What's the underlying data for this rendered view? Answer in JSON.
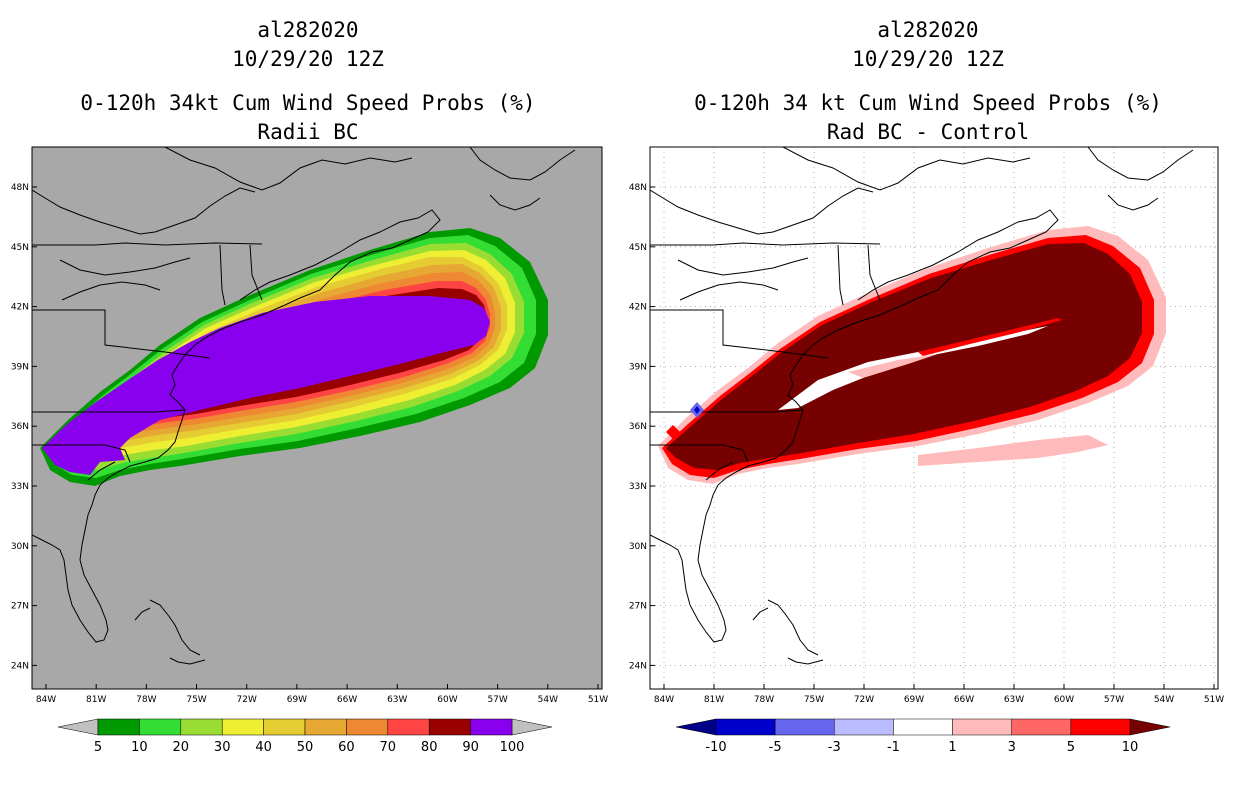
{
  "left_panel": {
    "storm_id": "al282020",
    "datetime": "10/29/20 12Z",
    "title": "0-120h 34kt Cum Wind Speed Probs (%)",
    "subtitle": "Radii BC",
    "background_color": "#a8a8a8",
    "lat_labels": [
      "48N",
      "45N",
      "42N",
      "39N",
      "36N",
      "33N",
      "30N",
      "27N",
      "24N"
    ],
    "lon_labels": [
      "84W",
      "81W",
      "78W",
      "75W",
      "72W",
      "69W",
      "66W",
      "63W",
      "60W",
      "57W",
      "54W",
      "51W"
    ],
    "colorbar": {
      "labels": [
        "5",
        "10",
        "20",
        "30",
        "40",
        "50",
        "60",
        "70",
        "80",
        "90",
        "100"
      ],
      "colors": [
        "#009900",
        "#33dd33",
        "#99dd33",
        "#eeee33",
        "#e6cc33",
        "#e6a833",
        "#ee8833",
        "#ff4444",
        "#990000",
        "#8800ee"
      ],
      "end_color": "#c0c0c0"
    }
  },
  "right_panel": {
    "storm_id": "al282020",
    "datetime": "10/29/20 12Z",
    "title": "0-120h 34 kt Cum Wind Speed Probs (%)",
    "subtitle": "Rad BC - Control",
    "background_color": "#ffffff",
    "lat_labels": [
      "48N",
      "45N",
      "42N",
      "39N",
      "36N",
      "33N",
      "30N",
      "27N",
      "24N"
    ],
    "lon_labels": [
      "84W",
      "81W",
      "78W",
      "75W",
      "72W",
      "69W",
      "66W",
      "63W",
      "60W",
      "57W",
      "54W",
      "51W"
    ],
    "colorbar": {
      "labels": [
        "-10",
        "-5",
        "-3",
        "-1",
        "1",
        "3",
        "5",
        "10"
      ],
      "colors": [
        "#0000cc",
        "#6666ee",
        "#bbbbff",
        "#ffffff",
        "#ffbbbb",
        "#ff6666",
        "#ff0000"
      ],
      "end_colors": [
        "#000088",
        "#770000"
      ]
    }
  }
}
